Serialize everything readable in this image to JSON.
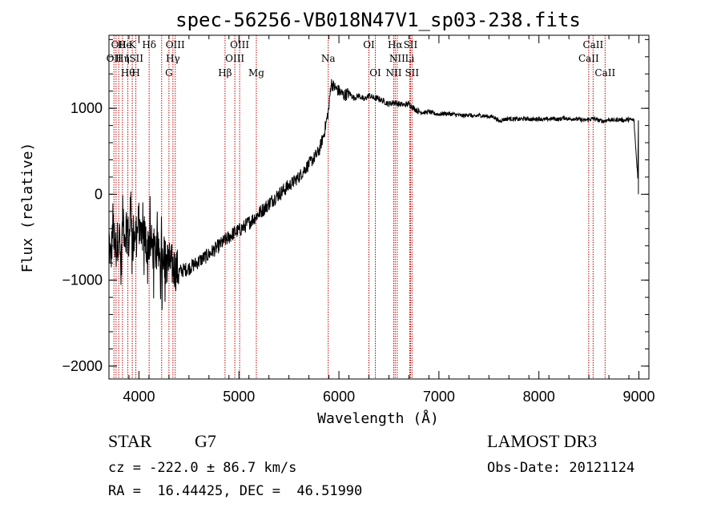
{
  "chart_data": {
    "type": "line",
    "title": "spec-56256-VB018N47V1_sp03-238.fits",
    "xlabel": "Wavelength (Å)",
    "ylabel": "Flux (relative)",
    "xlim": [
      3700,
      9100
    ],
    "ylim": [
      -2150,
      1850
    ],
    "xticks": [
      4000,
      5000,
      6000,
      7000,
      8000,
      9000
    ],
    "yticks": [
      -2000,
      -1000,
      0,
      1000
    ],
    "x_minor_step": 200,
    "y_minor_step": 200,
    "series": [
      {
        "name": "flux",
        "color": "#000000",
        "x": [
          3700,
          3720,
          3740,
          3760,
          3780,
          3800,
          3820,
          3840,
          3860,
          3880,
          3900,
          3920,
          3940,
          3960,
          3980,
          4000,
          4020,
          4040,
          4060,
          4080,
          4100,
          4150,
          4200,
          4250,
          4300,
          4350,
          4400,
          4450,
          4500,
          4550,
          4600,
          4650,
          4700,
          4750,
          4800,
          4850,
          4900,
          4950,
          5000,
          5050,
          5100,
          5150,
          5200,
          5250,
          5300,
          5350,
          5400,
          5450,
          5500,
          5550,
          5600,
          5650,
          5700,
          5750,
          5800,
          5850,
          5900,
          5920,
          5950,
          6000,
          6050,
          6100,
          6150,
          6200,
          6250,
          6300,
          6350,
          6400,
          6450,
          6500,
          6550,
          6600,
          6650,
          6700,
          6750,
          6800,
          6850,
          6900,
          6950,
          7000,
          7050,
          7100,
          7150,
          7200,
          7250,
          7300,
          7350,
          7400,
          7450,
          7500,
          7550,
          7600,
          7650,
          7700,
          7750,
          7800,
          7850,
          7900,
          7950,
          8000,
          8050,
          8100,
          8150,
          8200,
          8250,
          8300,
          8350,
          8400,
          8450,
          8500,
          8550,
          8600,
          8650,
          8700,
          8750,
          8800,
          8850,
          8900,
          8950,
          9000
        ],
        "y": [
          -500,
          -800,
          -300,
          -700,
          -600,
          -400,
          -900,
          -200,
          -500,
          -300,
          -600,
          -100,
          -700,
          -400,
          -500,
          -300,
          -600,
          -400,
          -500,
          -600,
          -550,
          -650,
          -700,
          -750,
          -800,
          -850,
          -900,
          -880,
          -860,
          -820,
          -780,
          -740,
          -700,
          -650,
          -600,
          -550,
          -500,
          -450,
          -420,
          -380,
          -330,
          -280,
          -220,
          -170,
          -110,
          -50,
          0,
          50,
          100,
          150,
          200,
          280,
          350,
          420,
          500,
          700,
          1000,
          1300,
          1250,
          1200,
          1150,
          1180,
          1120,
          1150,
          1100,
          1150,
          1120,
          1110,
          1080,
          1050,
          1070,
          1050,
          1040,
          1050,
          1000,
          960,
          950,
          960,
          940,
          930,
          940,
          935,
          930,
          920,
          910,
          930,
          900,
          920,
          910,
          905,
          900,
          850,
          870,
          880,
          875,
          870,
          880,
          875,
          870,
          880,
          870,
          875,
          880,
          870,
          890,
          875,
          880,
          870,
          860,
          870,
          880,
          860,
          850,
          870,
          860,
          870,
          860,
          870,
          860,
          0
        ]
      }
    ],
    "lines": {
      "positions": [
        3750,
        3771,
        3798,
        3835,
        3889,
        3933,
        3969,
        4102,
        4227,
        4300,
        4340,
        4363,
        4861,
        4959,
        5007,
        5174,
        5893,
        6300,
        6364,
        6548,
        6563,
        6583,
        6708,
        6716,
        6731,
        8498,
        8542,
        8662
      ]
    },
    "line_labels": [
      {
        "x": 3750,
        "row": 2,
        "text": "OII"
      },
      {
        "x": 3798,
        "row": 1,
        "text": "OII"
      },
      {
        "x": 3835,
        "row": 2,
        "text": "Hη"
      },
      {
        "x": 3858,
        "row": 1,
        "text": "He"
      },
      {
        "x": 3889,
        "row": 3,
        "text": "Hθ"
      },
      {
        "x": 3933,
        "row": 1,
        "text": "K"
      },
      {
        "x": 3955,
        "row": 2,
        "text": "ISII"
      },
      {
        "x": 3969,
        "row": 3,
        "text": "H"
      },
      {
        "x": 4102,
        "row": 1,
        "text": "Hδ"
      },
      {
        "x": 4300,
        "row": 3,
        "text": "G"
      },
      {
        "x": 4340,
        "row": 2,
        "text": "Hγ"
      },
      {
        "x": 4363,
        "row": 1,
        "text": "OIII"
      },
      {
        "x": 4861,
        "row": 3,
        "text": "Hβ"
      },
      {
        "x": 4959,
        "row": 2,
        "text": "OIII"
      },
      {
        "x": 5007,
        "row": 1,
        "text": "OIII"
      },
      {
        "x": 5174,
        "row": 3,
        "text": "Mg"
      },
      {
        "x": 5893,
        "row": 2,
        "text": "Na"
      },
      {
        "x": 6300,
        "row": 1,
        "text": "OI"
      },
      {
        "x": 6364,
        "row": 3,
        "text": "OI"
      },
      {
        "x": 6548,
        "row": 3,
        "text": "NII"
      },
      {
        "x": 6563,
        "row": 1,
        "text": "Hα"
      },
      {
        "x": 6583,
        "row": 2,
        "text": "NII"
      },
      {
        "x": 6708,
        "row": 2,
        "text": "Li"
      },
      {
        "x": 6716,
        "row": 1,
        "text": "SII"
      },
      {
        "x": 6731,
        "row": 3,
        "text": "SII"
      },
      {
        "x": 8498,
        "row": 2,
        "text": "CaII"
      },
      {
        "x": 8542,
        "row": 1,
        "text": "CaII"
      },
      {
        "x": 8662,
        "row": 3,
        "text": "CaII"
      }
    ]
  },
  "info": {
    "class": "STAR",
    "subclass": "G7",
    "survey": "LAMOST DR3",
    "cz": "cz = -222.0 ± 86.7 km/s",
    "obs_date": "Obs-Date: 20121124",
    "coords": "RA =  16.44425, DEC =  46.51990"
  }
}
